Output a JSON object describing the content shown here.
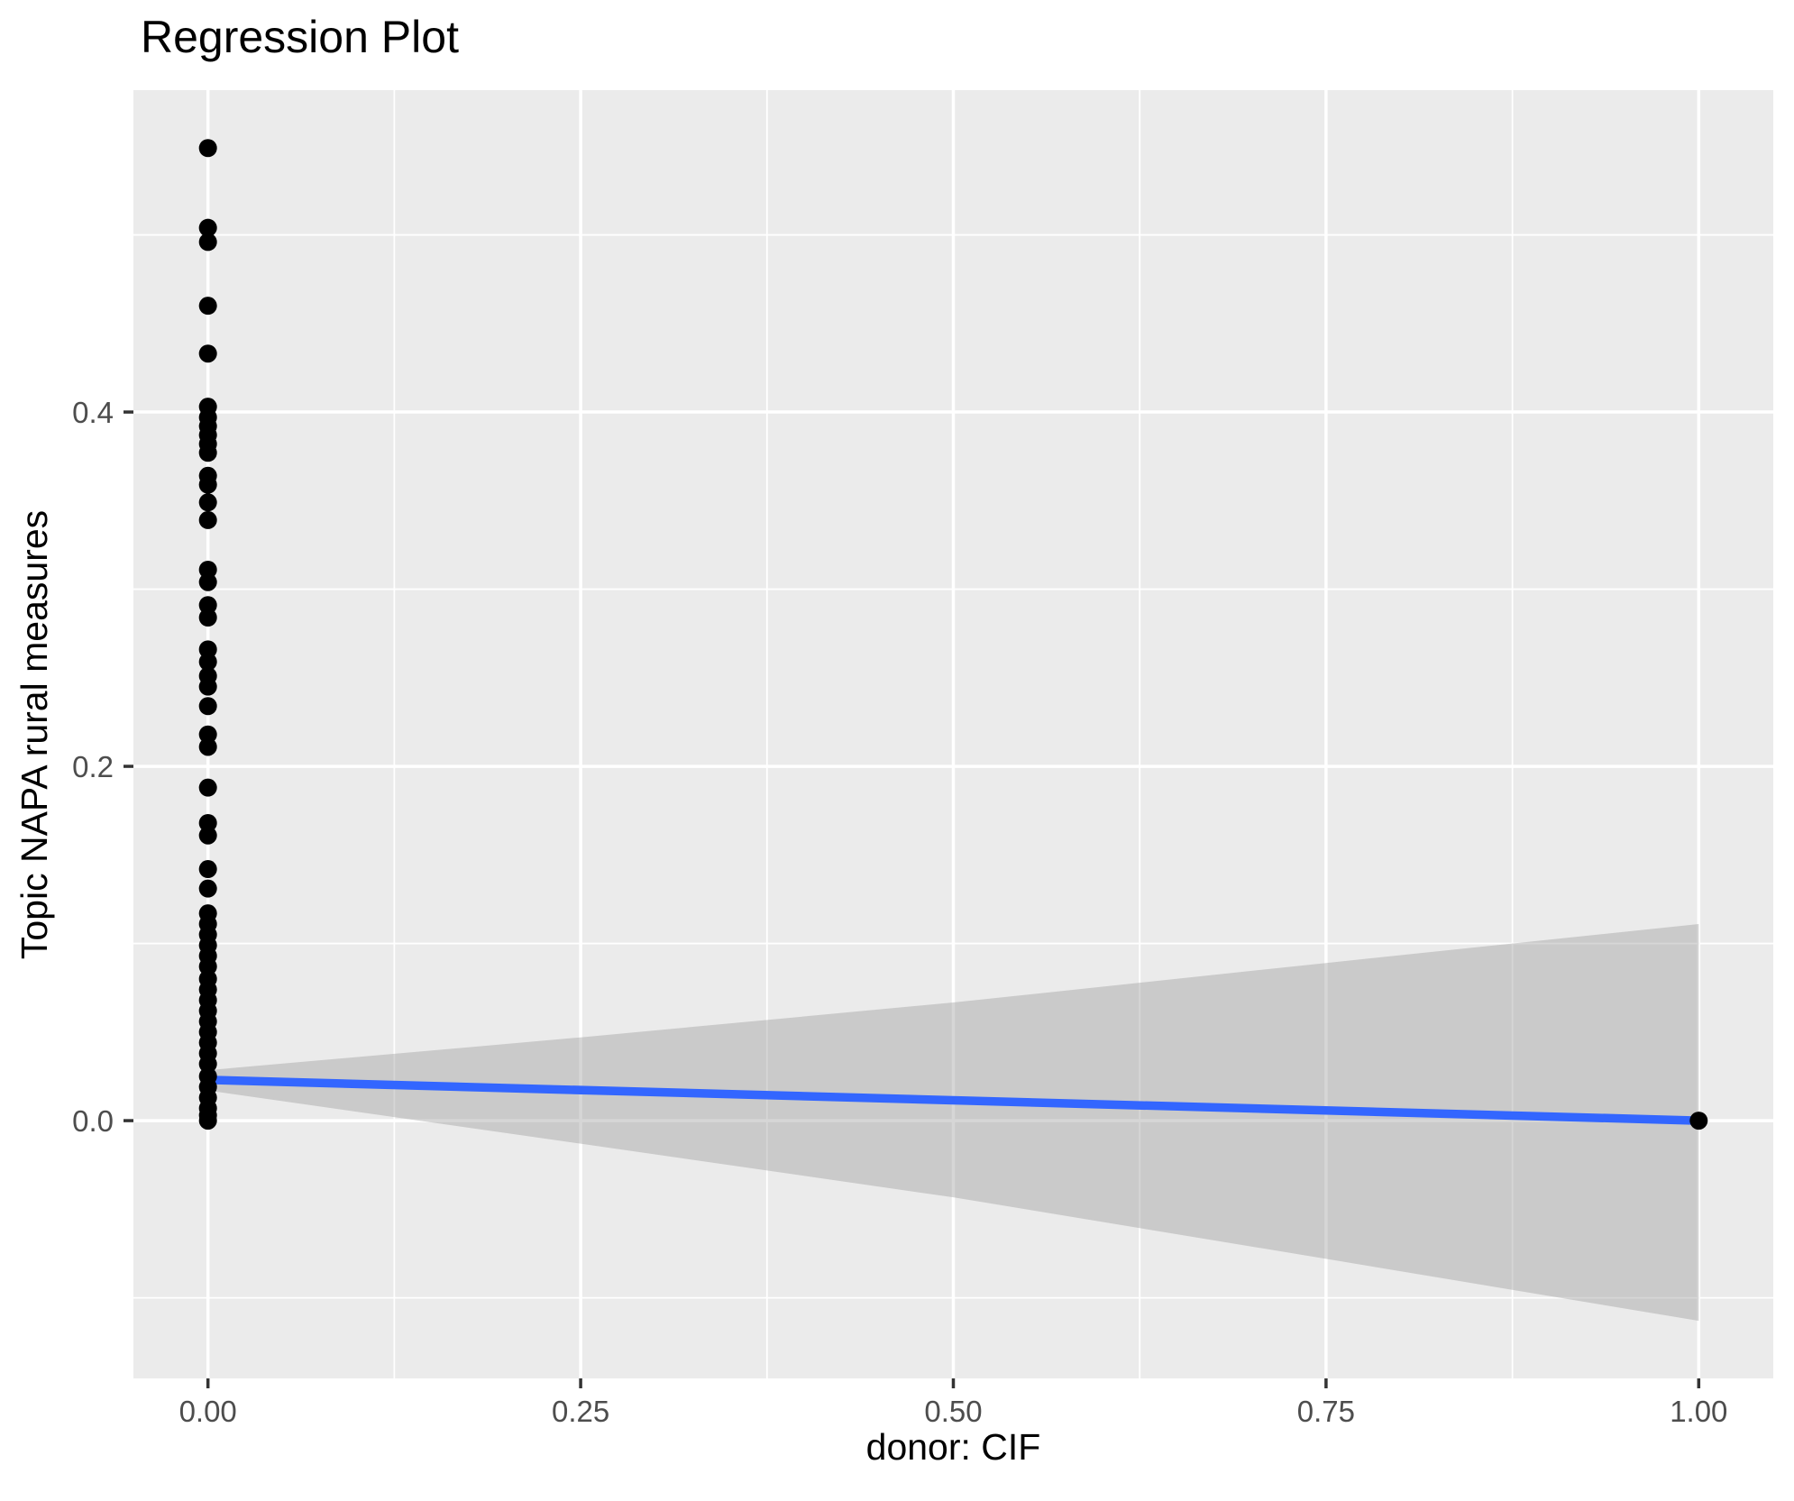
{
  "chart_data": {
    "type": "scatter",
    "title": "Regression Plot",
    "xlabel": "donor: CIF",
    "ylabel": "Topic NAPA rural measures",
    "xlim": [
      -0.05,
      1.05
    ],
    "ylim": [
      -0.1455,
      0.5817
    ],
    "grid": true,
    "legend_position": "none",
    "panel_bg": "#EBEBEB",
    "grid_color": "#FFFFFF",
    "tick_mark_color": "#333333",
    "tick_label_color": "#4D4D4D",
    "point_color": "#000000",
    "x_ticks": {
      "values": [
        0,
        0.25,
        0.5,
        0.75,
        1
      ],
      "labels": [
        "0.00",
        "0.25",
        "0.50",
        "0.75",
        "1.00"
      ]
    },
    "y_ticks": {
      "values": [
        0,
        0.2,
        0.4
      ],
      "labels": [
        "0.0",
        "0.2",
        "0.4"
      ]
    },
    "x_minor_ticks": [
      0.125,
      0.375,
      0.625,
      0.875
    ],
    "y_minor_ticks": [
      -0.1,
      0.1,
      0.3,
      0.5
    ],
    "points": [
      [
        0,
        0.549
      ],
      [
        0,
        0.504
      ],
      [
        0,
        0.496
      ],
      [
        0,
        0.46
      ],
      [
        0,
        0.433
      ],
      [
        0,
        0.403
      ],
      [
        0,
        0.397
      ],
      [
        0,
        0.392
      ],
      [
        0,
        0.387
      ],
      [
        0,
        0.382
      ],
      [
        0,
        0.377
      ],
      [
        0,
        0.364
      ],
      [
        0,
        0.359
      ],
      [
        0,
        0.349
      ],
      [
        0,
        0.339
      ],
      [
        0,
        0.311
      ],
      [
        0,
        0.304
      ],
      [
        0,
        0.291
      ],
      [
        0,
        0.284
      ],
      [
        0,
        0.266
      ],
      [
        0,
        0.259
      ],
      [
        0,
        0.251
      ],
      [
        0,
        0.245
      ],
      [
        0,
        0.234
      ],
      [
        0,
        0.218
      ],
      [
        0,
        0.211
      ],
      [
        0,
        0.188
      ],
      [
        0,
        0.168
      ],
      [
        0,
        0.161
      ],
      [
        0,
        0.142
      ],
      [
        0,
        0.131
      ],
      [
        0,
        0.117
      ],
      [
        0,
        0.111
      ],
      [
        0,
        0.105
      ],
      [
        0,
        0.099
      ],
      [
        0,
        0.093
      ],
      [
        0,
        0.087
      ],
      [
        0,
        0.08
      ],
      [
        0,
        0.074
      ],
      [
        0,
        0.068
      ],
      [
        0,
        0.062
      ],
      [
        0,
        0.056
      ],
      [
        0,
        0.05
      ],
      [
        0,
        0.044
      ],
      [
        0,
        0.038
      ],
      [
        0,
        0.032
      ],
      [
        0,
        0.025
      ],
      [
        0,
        0.019
      ],
      [
        0,
        0.013
      ],
      [
        0,
        0.007
      ],
      [
        0,
        0.003
      ],
      [
        0,
        0.0
      ],
      [
        1,
        0.0
      ]
    ],
    "regression_line": {
      "color": "#3366FF",
      "x": [
        0,
        1
      ],
      "y": [
        0.023,
        0.0
      ]
    },
    "confidence_ribbon": {
      "fill": "#999999",
      "opacity": 0.4,
      "x": [
        0,
        0.25,
        0.5,
        0.75,
        1.0
      ],
      "upper": [
        0.0285,
        0.047,
        0.0667,
        0.089,
        0.111
      ],
      "lower": [
        0.017,
        -0.013,
        -0.0433,
        -0.078,
        -0.113
      ]
    }
  }
}
